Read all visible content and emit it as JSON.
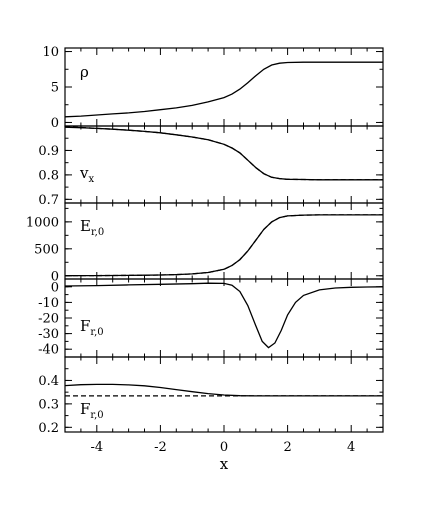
{
  "chart_data": [
    {
      "type": "line",
      "panel_label": "ρ",
      "label_main": "ρ",
      "label_sub": "",
      "x": [
        -5,
        -4.5,
        -4,
        -3.5,
        -3,
        -2.5,
        -2,
        -1.5,
        -1,
        -0.5,
        0,
        0.25,
        0.5,
        0.75,
        1,
        1.25,
        1.5,
        1.75,
        2,
        2.5,
        3,
        3.5,
        4,
        4.5,
        5
      ],
      "series": [
        {
          "style": "solid",
          "values": [
            0.8,
            0.9,
            1.05,
            1.2,
            1.35,
            1.55,
            1.8,
            2.05,
            2.4,
            2.9,
            3.5,
            4.0,
            4.7,
            5.6,
            6.6,
            7.5,
            8.1,
            8.35,
            8.45,
            8.5,
            8.5,
            8.5,
            8.5,
            8.5,
            8.5
          ]
        }
      ],
      "xlim": [
        -5,
        5
      ],
      "ylim": [
        -0.5,
        10.5
      ],
      "yticks": [
        0,
        5,
        10
      ],
      "ytick_labels": [
        "0",
        "5",
        "10"
      ]
    },
    {
      "type": "line",
      "panel_label": "vx",
      "label_main": "v",
      "label_sub": "x",
      "x": [
        -5,
        -4.5,
        -4,
        -3.5,
        -3,
        -2.5,
        -2,
        -1.5,
        -1,
        -0.5,
        0,
        0.25,
        0.5,
        0.75,
        1,
        1.25,
        1.5,
        1.75,
        2,
        2.5,
        3,
        3.5,
        4,
        4.5,
        5
      ],
      "series": [
        {
          "style": "solid",
          "values": [
            0.995,
            0.993,
            0.99,
            0.987,
            0.983,
            0.978,
            0.972,
            0.964,
            0.955,
            0.944,
            0.925,
            0.91,
            0.89,
            0.86,
            0.83,
            0.805,
            0.79,
            0.785,
            0.782,
            0.781,
            0.78,
            0.78,
            0.78,
            0.78,
            0.78
          ]
        },
        {
          "style": "dashed",
          "values": [
            0.997,
            0.994,
            0.99,
            0.987,
            0.983,
            0.978,
            0.972,
            0.964,
            0.955,
            0.944,
            0.925,
            0.91,
            0.89,
            0.86,
            0.83,
            0.805,
            0.79,
            0.785,
            0.782,
            0.781,
            0.78,
            0.78,
            0.78,
            0.78,
            0.78
          ]
        }
      ],
      "xlim": [
        -5,
        5
      ],
      "ylim": [
        0.685,
        1.0
      ],
      "yticks": [
        0.7,
        0.8,
        0.9
      ],
      "ytick_labels": [
        "0.7",
        "0.8",
        "0.9"
      ]
    },
    {
      "type": "line",
      "panel_label": "Er,0",
      "label_main": "E",
      "label_sub": "r,0",
      "x": [
        -5,
        -4.5,
        -4,
        -3.5,
        -3,
        -2.5,
        -2,
        -1.5,
        -1,
        -0.5,
        0,
        0.25,
        0.5,
        0.75,
        1,
        1.25,
        1.5,
        1.75,
        2,
        2.5,
        3,
        3.5,
        4,
        4.5,
        5
      ],
      "series": [
        {
          "style": "solid",
          "values": [
            2,
            3,
            4,
            5,
            7,
            10,
            15,
            22,
            35,
            60,
            120,
            190,
            300,
            460,
            660,
            860,
            1000,
            1080,
            1110,
            1125,
            1130,
            1130,
            1130,
            1130,
            1130
          ]
        },
        {
          "style": "dashed",
          "values": [
            2,
            3,
            4,
            5,
            7,
            10,
            15,
            22,
            35,
            60,
            120,
            190,
            300,
            460,
            660,
            860,
            1000,
            1080,
            1110,
            1125,
            1130,
            1130,
            1130,
            1130,
            1130
          ]
        }
      ],
      "xlim": [
        -5,
        5
      ],
      "ylim": [
        -60,
        1350
      ],
      "yticks": [
        0,
        500,
        1000
      ],
      "ytick_labels": [
        "0",
        "500",
        "1000"
      ]
    },
    {
      "type": "line",
      "panel_label": "Fr,0",
      "label_main": "F",
      "label_sub": "r,0",
      "x": [
        -5,
        -4,
        -3,
        -2,
        -1,
        -0.5,
        0,
        0.25,
        0.5,
        0.75,
        1,
        1.2,
        1.4,
        1.6,
        1.8,
        2,
        2.25,
        2.5,
        3,
        3.5,
        4,
        4.5,
        5
      ],
      "series": [
        {
          "style": "solid",
          "values": [
            0.5,
            0.8,
            1.2,
            1.6,
            2.0,
            2.3,
            2.2,
            1.0,
            -3.0,
            -12.0,
            -25.0,
            -35.0,
            -39.0,
            -36.0,
            -28.0,
            -18.0,
            -10.0,
            -5.5,
            -2.0,
            -0.8,
            -0.3,
            -0.1,
            0.0
          ]
        }
      ],
      "xlim": [
        -5,
        5
      ],
      "ylim": [
        -45,
        5
      ],
      "yticks": [
        0,
        -10,
        -20,
        -30,
        -40
      ],
      "ytick_labels": [
        "0",
        "-10",
        "-20",
        "-30",
        "-40"
      ]
    },
    {
      "type": "line",
      "panel_label": "Fr,0",
      "label_main": "F",
      "label_sub": "r,0",
      "x": [
        -5,
        -4.5,
        -4,
        -3.5,
        -3,
        -2.5,
        -2,
        -1.5,
        -1,
        -0.5,
        0,
        0.5,
        1,
        1.5,
        2,
        2.5,
        3,
        3.5,
        4,
        4.5,
        5
      ],
      "series": [
        {
          "style": "solid",
          "values": [
            0.378,
            0.382,
            0.383,
            0.383,
            0.381,
            0.377,
            0.37,
            0.361,
            0.352,
            0.344,
            0.338,
            0.335,
            0.334,
            0.334,
            0.334,
            0.334,
            0.334,
            0.334,
            0.334,
            0.334,
            0.334
          ]
        },
        {
          "style": "dashed",
          "values": [
            0.334,
            0.334,
            0.334,
            0.334,
            0.334,
            0.334,
            0.334,
            0.334,
            0.334,
            0.334,
            0.334,
            0.334,
            0.334,
            0.334,
            0.334,
            0.334,
            0.334,
            0.334,
            0.334,
            0.334,
            0.334
          ]
        }
      ],
      "xlim": [
        -5,
        5
      ],
      "ylim": [
        0.18,
        0.5
      ],
      "yticks": [
        0.2,
        0.3,
        0.4
      ],
      "ytick_labels": [
        "0.2",
        "0.3",
        "0.4"
      ]
    }
  ],
  "x_axis": {
    "label": "x",
    "ticks": [
      -4,
      -2,
      0,
      2,
      4
    ],
    "tick_labels": [
      "-4",
      "-2",
      "0",
      "2",
      "4"
    ]
  }
}
